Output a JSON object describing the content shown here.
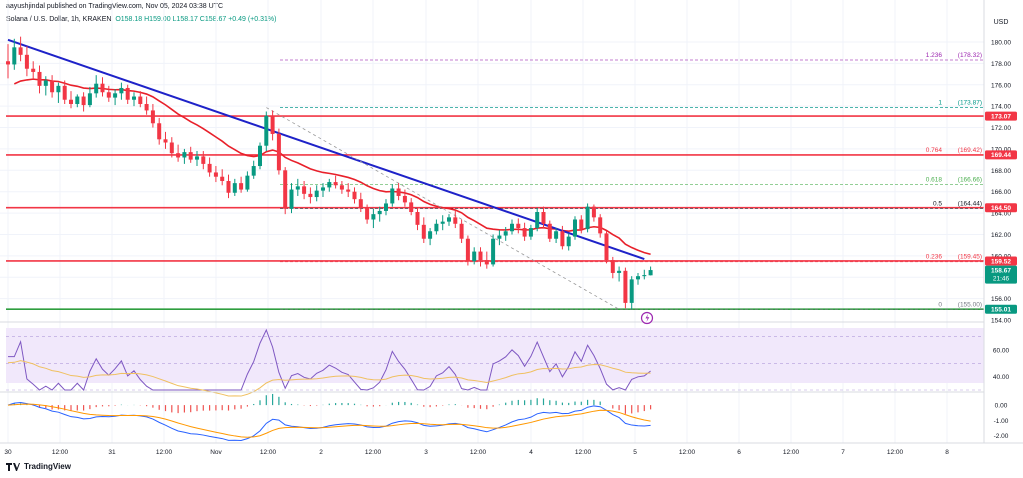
{
  "header": {
    "publisher": "aayushjindal published on TradingView.com, Nov 05, 2024 03:38 UTC",
    "symbol": "Solana / U.S. Dollar, 1h, KRAKEN",
    "ohlc": "O158.18 H159.00 L158.17 C158.67 +0.49 (+0.31%)",
    "currency": "USD"
  },
  "brand": "TradingView",
  "price_axis": {
    "ticks": [
      "180.00",
      "178.00",
      "176.00",
      "174.00",
      "172.00",
      "170.00",
      "168.00",
      "166.00",
      "164.00",
      "162.00",
      "160.00",
      "158.00",
      "156.00",
      "154.00"
    ],
    "tags": [
      {
        "label": "173.07",
        "color": "#f23645"
      },
      {
        "label": "169.44",
        "color": "#f23645"
      },
      {
        "label": "164.50",
        "color": "#f23645"
      },
      {
        "label": "159.52",
        "color": "#f23645"
      },
      {
        "label": "158.67",
        "sub": "21:46",
        "color": "#089981"
      },
      {
        "label": "155.01",
        "color": "#089981"
      }
    ]
  },
  "rsi_axis": {
    "ticks": [
      "60.00",
      "40.00"
    ]
  },
  "macd_axis": {
    "ticks": [
      "0.00",
      "-1.00",
      "-2.00"
    ]
  },
  "time_axis": {
    "ticks": [
      "30",
      "12:00",
      "31",
      "12:00",
      "Nov",
      "12:00",
      "2",
      "12:00",
      "3",
      "12:00",
      "4",
      "12:00",
      "5",
      "12:00",
      "6",
      "12:00",
      "7",
      "12:00",
      "8"
    ]
  },
  "colors": {
    "up": "#089981",
    "down": "#f23645",
    "trend": "#1e22c8",
    "ma": "#e8202a",
    "fib": "#808080",
    "support": "#2e9e3e",
    "rsi": "#7e57c2",
    "rsi_ma": "#f0c060",
    "rsi_band": "#f1e8fb",
    "macd": "#2962ff",
    "signal": "#ff9800"
  },
  "chart_data": {
    "type": "candlestick",
    "symbol": "Solana / U.S. Dollar",
    "interval": "1h",
    "exchange": "KRAKEN",
    "y_unit": "USD",
    "ylim": [
      153.5,
      181.5
    ],
    "candles": [
      [
        178.2,
        179.8,
        176.6,
        177.9
      ],
      [
        177.9,
        180.3,
        177.4,
        179.5
      ],
      [
        179.5,
        180.5,
        178.2,
        178.8
      ],
      [
        178.8,
        179.6,
        176.8,
        177.5
      ],
      [
        177.5,
        178.2,
        176.5,
        177.2
      ],
      [
        177.2,
        177.8,
        175.2,
        175.9
      ],
      [
        175.9,
        176.8,
        175.0,
        176.4
      ],
      [
        176.4,
        176.9,
        174.8,
        175.3
      ],
      [
        175.3,
        176.2,
        174.3,
        175.9
      ],
      [
        175.9,
        176.4,
        174.2,
        174.6
      ],
      [
        174.6,
        175.4,
        173.8,
        174.2
      ],
      [
        174.2,
        175.1,
        173.9,
        174.9
      ],
      [
        174.9,
        175.3,
        173.5,
        174.1
      ],
      [
        174.1,
        175.8,
        173.9,
        175.2
      ],
      [
        175.2,
        176.9,
        174.8,
        176.1
      ],
      [
        176.1,
        176.7,
        174.9,
        175.3
      ],
      [
        175.3,
        175.9,
        174.4,
        174.8
      ],
      [
        174.8,
        175.6,
        174.1,
        175.2
      ],
      [
        175.2,
        176.2,
        174.6,
        175.7
      ],
      [
        175.7,
        176.0,
        174.2,
        174.6
      ],
      [
        174.6,
        175.3,
        174.0,
        174.9
      ],
      [
        174.9,
        175.4,
        173.9,
        174.2
      ],
      [
        174.2,
        174.9,
        173.2,
        173.6
      ],
      [
        173.6,
        174.2,
        172.0,
        172.4
      ],
      [
        172.4,
        172.9,
        170.4,
        170.9
      ],
      [
        170.9,
        171.6,
        170.0,
        170.6
      ],
      [
        170.6,
        171.1,
        169.2,
        169.6
      ],
      [
        169.6,
        170.4,
        168.8,
        169.2
      ],
      [
        169.2,
        170.0,
        168.6,
        169.7
      ],
      [
        169.7,
        170.2,
        168.7,
        169.0
      ],
      [
        169.0,
        169.8,
        168.4,
        169.3
      ],
      [
        169.3,
        169.8,
        168.1,
        168.6
      ],
      [
        168.6,
        169.2,
        167.4,
        167.8
      ],
      [
        167.8,
        168.4,
        166.9,
        167.4
      ],
      [
        167.4,
        168.1,
        166.6,
        167.0
      ],
      [
        167.0,
        167.6,
        165.4,
        165.9
      ],
      [
        165.9,
        167.2,
        165.6,
        166.8
      ],
      [
        166.8,
        167.4,
        165.9,
        166.2
      ],
      [
        166.2,
        167.9,
        166.0,
        167.5
      ],
      [
        167.5,
        168.9,
        167.2,
        168.4
      ],
      [
        168.4,
        170.6,
        168.1,
        170.3
      ],
      [
        170.3,
        173.5,
        169.8,
        173.1
      ],
      [
        173.1,
        173.6,
        170.8,
        171.4
      ],
      [
        171.4,
        171.9,
        167.6,
        168.0
      ],
      [
        168.0,
        168.3,
        163.9,
        164.4
      ],
      [
        164.4,
        166.8,
        164.0,
        166.2
      ],
      [
        166.2,
        167.2,
        165.6,
        166.5
      ],
      [
        166.5,
        167.0,
        165.3,
        165.8
      ],
      [
        165.8,
        166.4,
        164.9,
        165.5
      ],
      [
        165.5,
        166.6,
        165.1,
        166.1
      ],
      [
        166.1,
        166.8,
        165.5,
        166.4
      ],
      [
        166.4,
        167.2,
        166.0,
        166.9
      ],
      [
        166.9,
        167.5,
        166.3,
        166.6
      ],
      [
        166.6,
        167.0,
        165.8,
        166.2
      ],
      [
        166.2,
        166.8,
        165.5,
        166.0
      ],
      [
        166.0,
        166.4,
        164.9,
        165.3
      ],
      [
        165.3,
        165.9,
        164.1,
        164.5
      ],
      [
        164.5,
        164.8,
        163.0,
        163.4
      ],
      [
        163.4,
        164.4,
        162.6,
        163.9
      ],
      [
        163.9,
        164.6,
        163.2,
        164.2
      ],
      [
        164.2,
        165.3,
        163.8,
        164.9
      ],
      [
        164.9,
        166.7,
        164.6,
        166.3
      ],
      [
        166.3,
        166.8,
        165.2,
        165.6
      ],
      [
        165.6,
        166.2,
        164.6,
        165.0
      ],
      [
        165.0,
        165.4,
        163.8,
        164.1
      ],
      [
        164.1,
        164.5,
        162.4,
        162.9
      ],
      [
        162.9,
        163.6,
        161.2,
        161.6
      ],
      [
        161.6,
        162.6,
        161.0,
        162.3
      ],
      [
        162.3,
        163.4,
        162.0,
        163.0
      ],
      [
        163.0,
        163.8,
        162.4,
        163.2
      ],
      [
        163.2,
        163.9,
        162.8,
        163.6
      ],
      [
        163.6,
        164.2,
        162.6,
        163.0
      ],
      [
        163.0,
        163.4,
        161.2,
        161.6
      ],
      [
        161.6,
        161.9,
        159.1,
        159.5
      ],
      [
        159.5,
        160.8,
        159.2,
        160.4
      ],
      [
        160.4,
        160.8,
        159.0,
        159.6
      ],
      [
        159.6,
        160.4,
        158.8,
        159.2
      ],
      [
        159.2,
        162.0,
        159.0,
        161.6
      ],
      [
        161.6,
        162.4,
        161.0,
        161.9
      ],
      [
        161.9,
        162.7,
        161.4,
        162.3
      ],
      [
        162.3,
        163.4,
        162.0,
        163.0
      ],
      [
        163.0,
        163.5,
        162.1,
        162.6
      ],
      [
        162.6,
        163.1,
        161.4,
        161.8
      ],
      [
        161.8,
        162.9,
        161.5,
        162.6
      ],
      [
        162.6,
        164.5,
        162.3,
        164.1
      ],
      [
        164.1,
        164.6,
        162.6,
        163.0
      ],
      [
        163.0,
        163.3,
        161.3,
        161.6
      ],
      [
        161.6,
        162.6,
        161.2,
        162.3
      ],
      [
        162.3,
        162.8,
        160.6,
        160.9
      ],
      [
        160.9,
        162.1,
        160.5,
        161.8
      ],
      [
        161.8,
        163.7,
        161.5,
        163.4
      ],
      [
        163.4,
        163.8,
        162.1,
        162.5
      ],
      [
        162.5,
        164.9,
        162.2,
        164.6
      ],
      [
        164.6,
        164.8,
        163.2,
        163.6
      ],
      [
        163.6,
        163.9,
        161.7,
        162.1
      ],
      [
        162.1,
        162.3,
        159.3,
        159.6
      ],
      [
        159.6,
        159.9,
        157.9,
        158.4
      ],
      [
        158.4,
        159.0,
        157.6,
        158.6
      ],
      [
        158.6,
        158.9,
        155.1,
        155.6
      ],
      [
        155.6,
        158.1,
        155.0,
        157.8
      ],
      [
        157.8,
        158.4,
        157.3,
        158.1
      ],
      [
        158.1,
        158.7,
        157.8,
        158.2
      ],
      [
        158.18,
        159.0,
        158.17,
        158.67
      ]
    ],
    "trend_line": {
      "from": [
        0,
        180.2
      ],
      "to": [
        101,
        159.7
      ],
      "color": "#1e22c8"
    },
    "moving_average_first": 175.5,
    "horizontal_levels": [
      {
        "price": 173.07,
        "color": "#f23645"
      },
      {
        "price": 169.44,
        "color": "#f23645"
      },
      {
        "price": 164.5,
        "color": "#f23645"
      },
      {
        "price": 159.52,
        "color": "#f23645"
      },
      {
        "price": 155.01,
        "color": "#2e9e3e"
      }
    ],
    "fibonacci": [
      {
        "ratio": "1.236",
        "price": "178.32",
        "value": 178.32
      },
      {
        "ratio": "1",
        "price": "173.87",
        "value": 173.87
      },
      {
        "ratio": "0.764",
        "price": "169.42",
        "value": 169.42
      },
      {
        "ratio": "0.618",
        "price": "166.66",
        "value": 166.66
      },
      {
        "ratio": "0.5",
        "price": "164.44",
        "value": 164.44
      },
      {
        "ratio": "0.236",
        "price": "159.45",
        "value": 159.45
      },
      {
        "ratio": "0",
        "price": "155.00",
        "value": 155.0
      }
    ],
    "fib_label_fmt": [
      "(",
      ")"
    ],
    "rsi": {
      "ylim": [
        30,
        75
      ],
      "band": [
        30,
        70
      ]
    },
    "macd": {
      "ylim": [
        -2.3,
        0.6
      ]
    }
  }
}
